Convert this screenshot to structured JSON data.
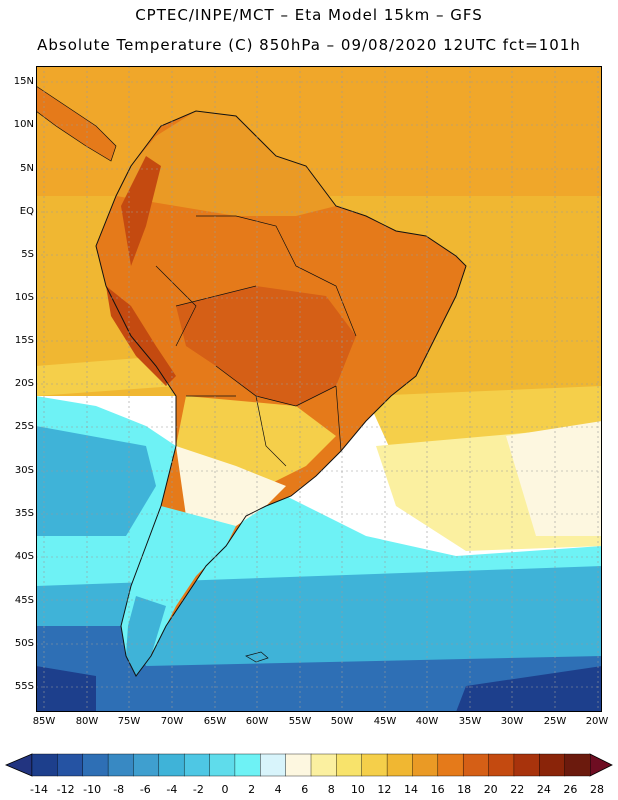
{
  "header": {
    "line1": "CPTEC/INPE/MCT –  Eta Model 15km – GFS",
    "line2": "Absolute Temperature (C) 850hPa – 09/08/2020 12UTC fct=101h"
  },
  "axes": {
    "lat_labels": [
      "15N",
      "10N",
      "5N",
      "EQ",
      "5S",
      "10S",
      "15S",
      "20S",
      "25S",
      "30S",
      "35S",
      "40S",
      "45S",
      "50S",
      "55S"
    ],
    "lon_labels": [
      "85W",
      "80W",
      "75W",
      "70W",
      "65W",
      "60W",
      "55W",
      "50W",
      "45W",
      "40W",
      "35W",
      "30W",
      "25W",
      "20W"
    ]
  },
  "colorbar": {
    "labels": [
      "-14",
      "-12",
      "-10",
      "-8",
      "-6",
      "-4",
      "-2",
      "0",
      "2",
      "4",
      "6",
      "8",
      "10",
      "12",
      "14",
      "16",
      "18",
      "20",
      "22",
      "24",
      "26",
      "28"
    ],
    "colors": [
      "#1d3f8c",
      "#2553a3",
      "#2e6fb5",
      "#3889c3",
      "#3f9fcf",
      "#3fb3d8",
      "#4ec7e4",
      "#5fdceb",
      "#6ef2f5",
      "#d8f4fb",
      "#fdf7e0",
      "#fbf0a0",
      "#f8e36b",
      "#f5cf4a",
      "#f0b732",
      "#ea9a25",
      "#e57a1a",
      "#d55f16",
      "#c44a10",
      "#a8330c",
      "#8a2409",
      "#6b1a0d"
    ],
    "left_arrow_color": "#223480",
    "right_arrow_color": "#6e0d22"
  },
  "map": {
    "ocean_colors": {
      "far_north": "#f0a72a",
      "north": "#f0b732",
      "subtropical": "#f5cf4a",
      "warm_band": "#fbf0a0",
      "neutral": "#fdf7e0",
      "cool": "#6ef2f5",
      "cold": "#3fb3d8",
      "colder": "#2e6fb5",
      "coldest": "#1d3f8c"
    },
    "land_colors": {
      "hot": "#d55f16",
      "warm": "#e57a1a",
      "mild": "#ea9a25"
    },
    "grid_color": "#9a9a9a",
    "coast_color": "#111111"
  }
}
